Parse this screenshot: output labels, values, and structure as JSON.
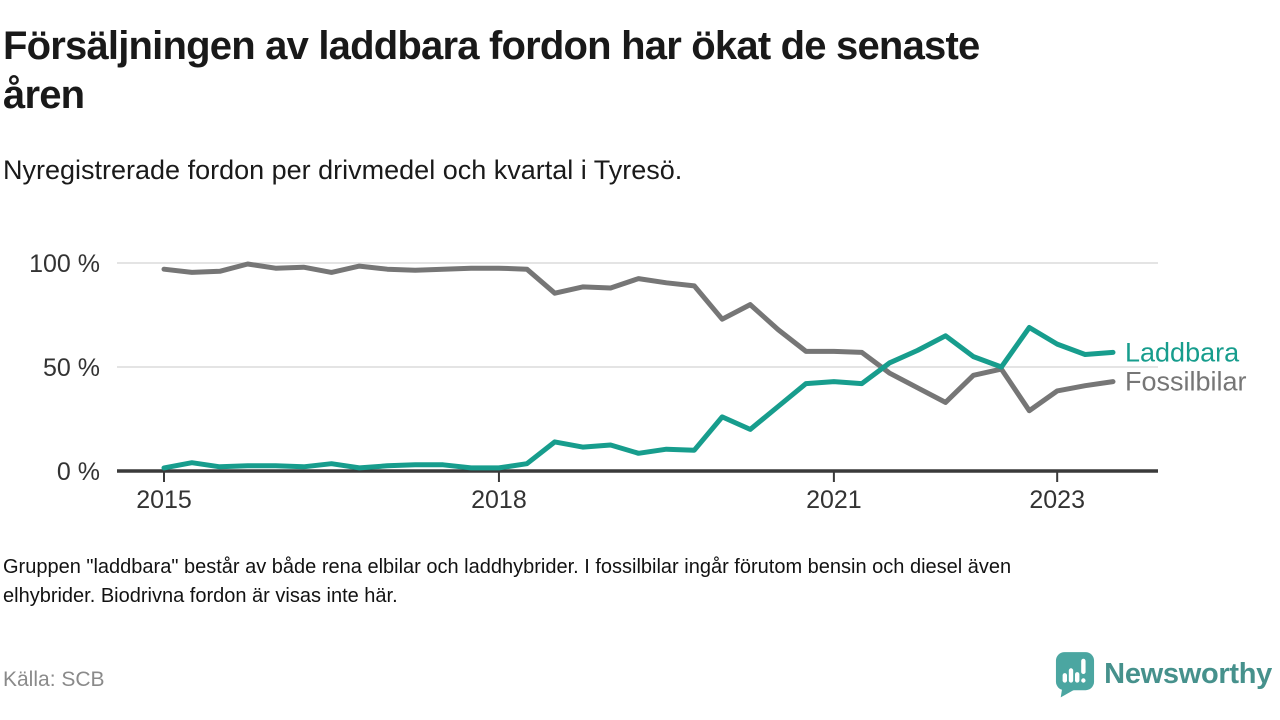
{
  "header": {
    "title": "Försäljningen av laddbara fordon har ökat de senaste åren",
    "title_lines": [
      "Försäljningen av laddbara fordon har ökat de senaste",
      "åren"
    ],
    "subtitle": "Nyregistrerade fordon per drivmedel och kvartal i Tyresö."
  },
  "chart_data": {
    "type": "line",
    "unit": "%",
    "ylim": [
      0,
      100
    ],
    "grid": true,
    "legend_position": "right-end",
    "x_range": "2015 Q1 – 2023 Q3",
    "y_ticks": [
      {
        "value": 100,
        "label": "100 %"
      },
      {
        "value": 50,
        "label": "50 %"
      },
      {
        "value": 0,
        "label": "0 %"
      }
    ],
    "x_ticks": [
      {
        "index": 0,
        "label": "2015"
      },
      {
        "index": 12,
        "label": "2018"
      },
      {
        "index": 24,
        "label": "2021"
      },
      {
        "index": 32,
        "label": "2023"
      }
    ],
    "categories": [
      "2015 Q1",
      "2015 Q2",
      "2015 Q3",
      "2015 Q4",
      "2016 Q1",
      "2016 Q2",
      "2016 Q3",
      "2016 Q4",
      "2017 Q1",
      "2017 Q2",
      "2017 Q3",
      "2017 Q4",
      "2018 Q1",
      "2018 Q2",
      "2018 Q3",
      "2018 Q4",
      "2019 Q1",
      "2019 Q2",
      "2019 Q3",
      "2019 Q4",
      "2020 Q1",
      "2020 Q2",
      "2020 Q3",
      "2020 Q4",
      "2021 Q1",
      "2021 Q2",
      "2021 Q3",
      "2021 Q4",
      "2022 Q1",
      "2022 Q2",
      "2022 Q3",
      "2022 Q4",
      "2023 Q1",
      "2023 Q2",
      "2023 Q3"
    ],
    "series": [
      {
        "name": "Laddbara",
        "color": "#179d8d",
        "values": [
          1.5,
          4,
          2,
          2.5,
          2.5,
          2,
          3.5,
          1.5,
          2.5,
          3,
          3,
          1.5,
          1.5,
          3.5,
          14,
          11.5,
          12.5,
          8.5,
          10.5,
          10,
          26,
          20,
          31,
          42,
          43,
          42,
          52,
          58,
          65,
          55,
          50,
          69,
          61,
          56,
          57
        ]
      },
      {
        "name": "Fossilbilar",
        "color": "#767676",
        "values": [
          97,
          95.5,
          96,
          99.5,
          97.5,
          98,
          95.5,
          98.5,
          97,
          96.5,
          97,
          97.5,
          97.5,
          97,
          85.5,
          88.5,
          88,
          92.5,
          90.5,
          89,
          73,
          80,
          68,
          57.5,
          57.5,
          57,
          47,
          40,
          33,
          46,
          49,
          29,
          38.5,
          41,
          43
        ]
      }
    ]
  },
  "footnote": "Gruppen \"laddbara\" består av både rena elbilar och laddhybrider. I fossilbilar ingår förutom bensin och diesel även elhybrider. Biodrivna fordon är visas inte här.",
  "footnote_lines": [
    "Gruppen \"laddbara\" består av både rena elbilar och laddhybrider. I fossilbilar ingår förutom bensin och diesel även",
    "elhybrider. Biodrivna fordon är visas inte här."
  ],
  "source": "Källa: SCB",
  "brand": {
    "name": "Newsworthy",
    "icon": "newsworthy-speech-bubble-chart-icon",
    "icon_color": "#4BA6A1",
    "wordmark_color": "#46918c"
  },
  "colors": {
    "laddbara_line": "#179d8d",
    "fossilbilar_line": "#767676",
    "gridline": "#dcdcdc",
    "axis": "#3a3a3a",
    "axis_labels": "#333333",
    "title_text": "#191919",
    "footnote_text": "#121212",
    "source_text": "#8a8a8a"
  }
}
